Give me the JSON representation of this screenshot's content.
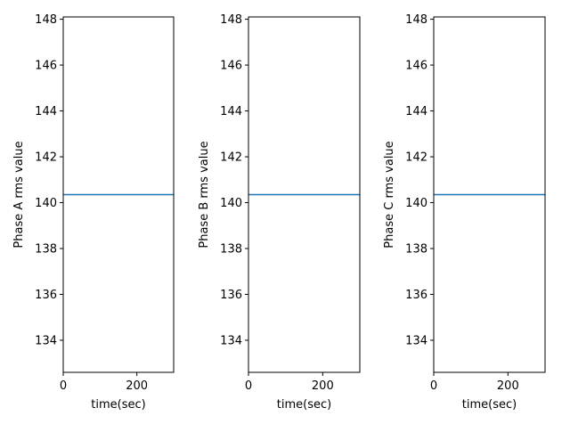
{
  "colors": {
    "series": "#1f77b4",
    "axes": "#000000",
    "background": "#ffffff"
  },
  "chart_data": [
    {
      "type": "line",
      "xlabel": "time(sec)",
      "ylabel": "Phase A rms value",
      "xlim": [
        0,
        300
      ],
      "ylim": [
        132.6,
        148.1
      ],
      "xticks": [
        0,
        200
      ],
      "yticks": [
        134,
        136,
        138,
        140,
        142,
        144,
        146,
        148
      ],
      "grid": false,
      "series": [
        {
          "x": [
            0,
            300
          ],
          "y": [
            140.35,
            140.35
          ]
        }
      ]
    },
    {
      "type": "line",
      "xlabel": "time(sec)",
      "ylabel": "Phase B rms value",
      "xlim": [
        0,
        300
      ],
      "ylim": [
        132.6,
        148.1
      ],
      "xticks": [
        0,
        200
      ],
      "yticks": [
        134,
        136,
        138,
        140,
        142,
        144,
        146,
        148
      ],
      "grid": false,
      "series": [
        {
          "x": [
            0,
            300
          ],
          "y": [
            140.35,
            140.35
          ]
        }
      ]
    },
    {
      "type": "line",
      "xlabel": "time(sec)",
      "ylabel": "Phase C rms value",
      "xlim": [
        0,
        300
      ],
      "ylim": [
        132.6,
        148.1
      ],
      "xticks": [
        0,
        200
      ],
      "yticks": [
        134,
        136,
        138,
        140,
        142,
        144,
        146,
        148
      ],
      "grid": false,
      "series": [
        {
          "x": [
            0,
            300
          ],
          "y": [
            140.35,
            140.35
          ]
        }
      ]
    }
  ]
}
